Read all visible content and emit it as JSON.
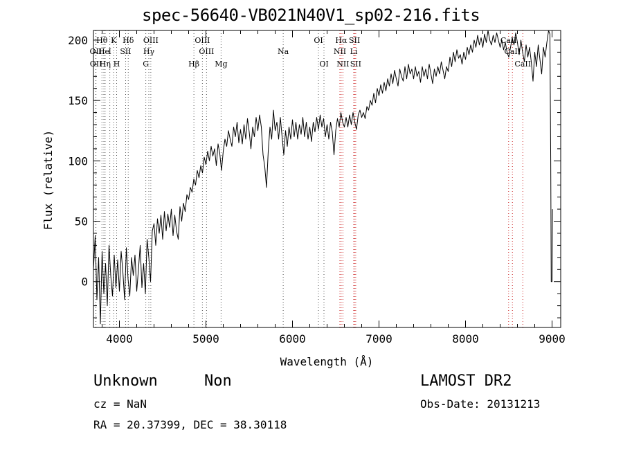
{
  "title": "spec-56640-VB021N40V1_sp02-216.fits",
  "info": {
    "class": "Unknown",
    "subclass": "Non",
    "survey": "LAMOST DR2",
    "cz": "cz = NaN",
    "obs_date": "Obs-Date: 20131213",
    "ra_dec": "RA =  20.37399, DEC =  38.30118"
  },
  "chart_data": {
    "type": "line",
    "xlabel": "Wavelength (Å)",
    "ylabel": "Flux (relative)",
    "xlim": [
      3700,
      9100
    ],
    "ylim": [
      -38,
      208
    ],
    "xticks": [
      4000,
      5000,
      6000,
      7000,
      8000,
      9000
    ],
    "yticks": [
      0,
      50,
      100,
      150,
      200
    ],
    "grid": false,
    "lines": [
      {
        "label": "Hθ",
        "wave": 3798,
        "row": 0,
        "color": "#555555"
      },
      {
        "label": "K",
        "wave": 3934,
        "row": 0,
        "color": "#555555"
      },
      {
        "label": "Hδ",
        "wave": 4102,
        "row": 0,
        "color": "#555555"
      },
      {
        "label": "OIII",
        "wave": 4363,
        "row": 0,
        "color": "#555555"
      },
      {
        "label": "OIII",
        "wave": 4959,
        "row": 0,
        "color": "#555555"
      },
      {
        "label": "OI",
        "wave": 6300,
        "row": 0,
        "color": "#555555"
      },
      {
        "label": "Hα",
        "wave": 6563,
        "row": 0,
        "color": "#cc2222"
      },
      {
        "label": "SII",
        "wave": 6717,
        "row": 0,
        "color": "#cc2222"
      },
      {
        "label": "CaII",
        "wave": 8498,
        "row": 0,
        "color": "#cc2222"
      },
      {
        "label": "OII",
        "wave": 3727,
        "row": 1,
        "color": "#555555"
      },
      {
        "label": "He",
        "wave": 3820,
        "row": 1,
        "color": "#555555"
      },
      {
        "label": "I",
        "wave": 3889,
        "row": 1,
        "color": "#555555"
      },
      {
        "label": "SII",
        "wave": 4072,
        "row": 1,
        "color": "#555555"
      },
      {
        "label": "Hγ",
        "wave": 4340,
        "row": 1,
        "color": "#555555"
      },
      {
        "label": "OIII",
        "wave": 5007,
        "row": 1,
        "color": "#555555"
      },
      {
        "label": "Na",
        "wave": 5893,
        "row": 1,
        "color": "#555555"
      },
      {
        "label": "NII",
        "wave": 6548,
        "row": 1,
        "color": "#cc2222"
      },
      {
        "label": "Li",
        "wave": 6708,
        "row": 1,
        "color": "#cc2222"
      },
      {
        "label": "CaII",
        "wave": 8542,
        "row": 1,
        "color": "#cc2222"
      },
      {
        "label": "OII",
        "wave": 3729,
        "row": 2,
        "color": "#555555"
      },
      {
        "label": "Hη",
        "wave": 3835,
        "row": 2,
        "color": "#555555"
      },
      {
        "label": "H",
        "wave": 3968,
        "row": 2,
        "color": "#555555"
      },
      {
        "label": "G",
        "wave": 4305,
        "row": 2,
        "color": "#555555"
      },
      {
        "label": "Hβ",
        "wave": 4861,
        "row": 2,
        "color": "#555555"
      },
      {
        "label": "Mg",
        "wave": 5175,
        "row": 2,
        "color": "#555555"
      },
      {
        "label": "OI",
        "wave": 6364,
        "row": 2,
        "color": "#555555"
      },
      {
        "label": "NII",
        "wave": 6583,
        "row": 2,
        "color": "#cc2222"
      },
      {
        "label": "SII",
        "wave": 6731,
        "row": 2,
        "color": "#cc2222"
      },
      {
        "label": "CaII",
        "wave": 8662,
        "row": 2,
        "color": "#cc2222"
      }
    ],
    "series": [
      {
        "values": [
          [
            3700,
            10
          ],
          [
            3720,
            38
          ],
          [
            3740,
            -15
          ],
          [
            3760,
            20
          ],
          [
            3780,
            -35
          ],
          [
            3800,
            25
          ],
          [
            3820,
            -10
          ],
          [
            3840,
            15
          ],
          [
            3860,
            -20
          ],
          [
            3880,
            30
          ],
          [
            3900,
            5
          ],
          [
            3920,
            -12
          ],
          [
            3940,
            22
          ],
          [
            3960,
            -5
          ],
          [
            3980,
            18
          ],
          [
            4000,
            -8
          ],
          [
            4020,
            25
          ],
          [
            4040,
            8
          ],
          [
            4060,
            -15
          ],
          [
            4080,
            28
          ],
          [
            4100,
            2
          ],
          [
            4120,
            -12
          ],
          [
            4140,
            20
          ],
          [
            4160,
            5
          ],
          [
            4180,
            22
          ],
          [
            4200,
            -8
          ],
          [
            4220,
            10
          ],
          [
            4240,
            30
          ],
          [
            4260,
            -5
          ],
          [
            4280,
            15
          ],
          [
            4300,
            -10
          ],
          [
            4320,
            35
          ],
          [
            4340,
            20
          ],
          [
            4360,
            0
          ],
          [
            4380,
            42
          ],
          [
            4400,
            48
          ],
          [
            4420,
            30
          ],
          [
            4440,
            52
          ],
          [
            4460,
            40
          ],
          [
            4480,
            55
          ],
          [
            4500,
            35
          ],
          [
            4520,
            58
          ],
          [
            4540,
            42
          ],
          [
            4560,
            56
          ],
          [
            4580,
            45
          ],
          [
            4600,
            60
          ],
          [
            4620,
            38
          ],
          [
            4640,
            55
          ],
          [
            4660,
            42
          ],
          [
            4680,
            35
          ],
          [
            4700,
            62
          ],
          [
            4720,
            50
          ],
          [
            4740,
            65
          ],
          [
            4760,
            58
          ],
          [
            4780,
            72
          ],
          [
            4800,
            68
          ],
          [
            4820,
            78
          ],
          [
            4840,
            74
          ],
          [
            4860,
            85
          ],
          [
            4880,
            80
          ],
          [
            4900,
            92
          ],
          [
            4920,
            86
          ],
          [
            4940,
            96
          ],
          [
            4960,
            90
          ],
          [
            4980,
            103
          ],
          [
            5000,
            97
          ],
          [
            5020,
            108
          ],
          [
            5040,
            100
          ],
          [
            5060,
            112
          ],
          [
            5080,
            104
          ],
          [
            5100,
            110
          ],
          [
            5120,
            96
          ],
          [
            5140,
            114
          ],
          [
            5160,
            106
          ],
          [
            5180,
            92
          ],
          [
            5200,
            108
          ],
          [
            5220,
            118
          ],
          [
            5240,
            112
          ],
          [
            5260,
            125
          ],
          [
            5280,
            118
          ],
          [
            5300,
            112
          ],
          [
            5320,
            128
          ],
          [
            5340,
            120
          ],
          [
            5360,
            132
          ],
          [
            5380,
            115
          ],
          [
            5400,
            126
          ],
          [
            5420,
            114
          ],
          [
            5440,
            130
          ],
          [
            5460,
            118
          ],
          [
            5480,
            135
          ],
          [
            5500,
            124
          ],
          [
            5520,
            110
          ],
          [
            5540,
            128
          ],
          [
            5560,
            120
          ],
          [
            5580,
            136
          ],
          [
            5600,
            125
          ],
          [
            5620,
            138
          ],
          [
            5640,
            128
          ],
          [
            5660,
            105
          ],
          [
            5680,
            95
          ],
          [
            5700,
            78
          ],
          [
            5720,
            108
          ],
          [
            5740,
            128
          ],
          [
            5760,
            118
          ],
          [
            5780,
            142
          ],
          [
            5800,
            125
          ],
          [
            5820,
            132
          ],
          [
            5840,
            118
          ],
          [
            5860,
            136
          ],
          [
            5880,
            120
          ],
          [
            5900,
            105
          ],
          [
            5920,
            125
          ],
          [
            5940,
            112
          ],
          [
            5960,
            128
          ],
          [
            5980,
            118
          ],
          [
            6000,
            134
          ],
          [
            6020,
            120
          ],
          [
            6040,
            132
          ],
          [
            6060,
            118
          ],
          [
            6080,
            130
          ],
          [
            6100,
            122
          ],
          [
            6120,
            136
          ],
          [
            6140,
            120
          ],
          [
            6160,
            132
          ],
          [
            6180,
            118
          ],
          [
            6200,
            128
          ],
          [
            6220,
            116
          ],
          [
            6240,
            132
          ],
          [
            6260,
            124
          ],
          [
            6280,
            136
          ],
          [
            6300,
            126
          ],
          [
            6320,
            138
          ],
          [
            6340,
            128
          ],
          [
            6360,
            135
          ],
          [
            6380,
            120
          ],
          [
            6400,
            130
          ],
          [
            6420,
            118
          ],
          [
            6440,
            132
          ],
          [
            6460,
            124
          ],
          [
            6480,
            105
          ],
          [
            6500,
            125
          ],
          [
            6520,
            135
          ],
          [
            6540,
            128
          ],
          [
            6560,
            140
          ],
          [
            6580,
            132
          ],
          [
            6600,
            128
          ],
          [
            6620,
            136
          ],
          [
            6640,
            128
          ],
          [
            6660,
            138
          ],
          [
            6680,
            130
          ],
          [
            6700,
            140
          ],
          [
            6720,
            132
          ],
          [
            6740,
            126
          ],
          [
            6760,
            138
          ],
          [
            6780,
            142
          ],
          [
            6800,
            136
          ],
          [
            6820,
            140
          ],
          [
            6840,
            135
          ],
          [
            6860,
            145
          ],
          [
            6880,
            142
          ],
          [
            6900,
            150
          ],
          [
            6920,
            146
          ],
          [
            6940,
            156
          ],
          [
            6960,
            148
          ],
          [
            6980,
            160
          ],
          [
            7000,
            154
          ],
          [
            7020,
            163
          ],
          [
            7040,
            156
          ],
          [
            7060,
            165
          ],
          [
            7080,
            158
          ],
          [
            7100,
            168
          ],
          [
            7120,
            162
          ],
          [
            7140,
            172
          ],
          [
            7160,
            164
          ],
          [
            7180,
            175
          ],
          [
            7200,
            168
          ],
          [
            7220,
            162
          ],
          [
            7240,
            176
          ],
          [
            7260,
            170
          ],
          [
            7280,
            166
          ],
          [
            7300,
            178
          ],
          [
            7320,
            168
          ],
          [
            7340,
            180
          ],
          [
            7360,
            172
          ],
          [
            7380,
            176
          ],
          [
            7400,
            168
          ],
          [
            7420,
            178
          ],
          [
            7440,
            170
          ],
          [
            7460,
            174
          ],
          [
            7480,
            165
          ],
          [
            7500,
            178
          ],
          [
            7520,
            170
          ],
          [
            7540,
            176
          ],
          [
            7560,
            168
          ],
          [
            7580,
            180
          ],
          [
            7600,
            172
          ],
          [
            7620,
            164
          ],
          [
            7640,
            176
          ],
          [
            7660,
            170
          ],
          [
            7680,
            178
          ],
          [
            7700,
            172
          ],
          [
            7720,
            182
          ],
          [
            7740,
            175
          ],
          [
            7760,
            168
          ],
          [
            7780,
            178
          ],
          [
            7800,
            174
          ],
          [
            7820,
            186
          ],
          [
            7840,
            178
          ],
          [
            7860,
            190
          ],
          [
            7880,
            182
          ],
          [
            7900,
            192
          ],
          [
            7920,
            185
          ],
          [
            7940,
            188
          ],
          [
            7960,
            180
          ],
          [
            7980,
            190
          ],
          [
            8000,
            184
          ],
          [
            8020,
            194
          ],
          [
            8040,
            188
          ],
          [
            8060,
            196
          ],
          [
            8080,
            190
          ],
          [
            8100,
            200
          ],
          [
            8120,
            194
          ],
          [
            8140,
            204
          ],
          [
            8160,
            196
          ],
          [
            8180,
            202
          ],
          [
            8200,
            194
          ],
          [
            8220,
            205
          ],
          [
            8240,
            198
          ],
          [
            8260,
            208
          ],
          [
            8280,
            200
          ],
          [
            8300,
            196
          ],
          [
            8320,
            204
          ],
          [
            8340,
            198
          ],
          [
            8360,
            206
          ],
          [
            8380,
            200
          ],
          [
            8400,
            194
          ],
          [
            8420,
            200
          ],
          [
            8440,
            192
          ],
          [
            8460,
            198
          ],
          [
            8480,
            190
          ],
          [
            8500,
            186
          ],
          [
            8520,
            194
          ],
          [
            8540,
            202
          ],
          [
            8560,
            196
          ],
          [
            8580,
            206
          ],
          [
            8600,
            198
          ],
          [
            8620,
            188
          ],
          [
            8640,
            200
          ],
          [
            8660,
            190
          ],
          [
            8680,
            182
          ],
          [
            8700,
            196
          ],
          [
            8720,
            186
          ],
          [
            8740,
            194
          ],
          [
            8760,
            182
          ],
          [
            8780,
            166
          ],
          [
            8800,
            190
          ],
          [
            8820,
            178
          ],
          [
            8840,
            196
          ],
          [
            8860,
            184
          ],
          [
            8880,
            172
          ],
          [
            8900,
            194
          ],
          [
            8920,
            186
          ],
          [
            8940,
            198
          ],
          [
            8960,
            208
          ],
          [
            8975,
            205
          ],
          [
            8985,
            100
          ],
          [
            8990,
            0
          ],
          [
            9000,
            0
          ],
          [
            9005,
            60
          ]
        ]
      }
    ]
  }
}
